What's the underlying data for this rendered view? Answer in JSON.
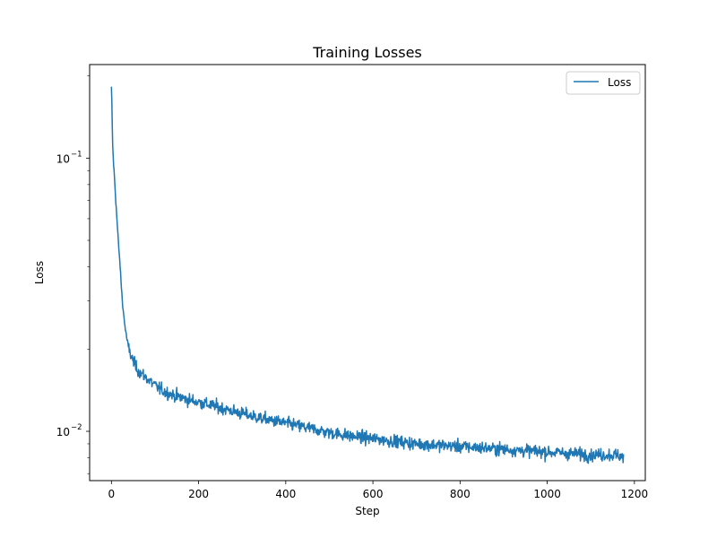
{
  "chart_data": {
    "type": "line",
    "title": "Training Losses",
    "xlabel": "Step",
    "ylabel": "Loss",
    "xlim": [
      -50,
      1225
    ],
    "ylim": [
      0.0066,
      0.22
    ],
    "yscale": "log",
    "x_ticks": [
      0,
      200,
      400,
      600,
      800,
      1000,
      1200
    ],
    "x_tick_labels": [
      "0",
      "200",
      "400",
      "600",
      "800",
      "1000",
      "1200"
    ],
    "y_major_ticks": [
      0.01,
      0.1
    ],
    "y_major_tick_labels": [
      "10",
      "10"
    ],
    "y_major_tick_exponents": [
      "−2",
      "−1"
    ],
    "y_minor_ticks": [
      0.007,
      0.008,
      0.009,
      0.02,
      0.03,
      0.04,
      0.05,
      0.06,
      0.07,
      0.08,
      0.09,
      0.2
    ],
    "grid": false,
    "legend_position": "top-right",
    "series": [
      {
        "name": "Loss",
        "color": "#1f77b4",
        "noise": 0.045,
        "x": [
          0,
          1,
          2,
          3,
          5,
          8,
          10,
          15,
          20,
          25,
          30,
          35,
          40,
          45,
          50,
          60,
          70,
          80,
          90,
          100,
          120,
          140,
          160,
          180,
          200,
          250,
          300,
          350,
          400,
          450,
          500,
          550,
          600,
          650,
          700,
          750,
          800,
          850,
          900,
          950,
          1000,
          1050,
          1100,
          1150,
          1175
        ],
        "y": [
          0.18,
          0.16,
          0.13,
          0.11,
          0.095,
          0.08,
          0.07,
          0.052,
          0.04,
          0.03,
          0.025,
          0.022,
          0.02,
          0.019,
          0.018,
          0.0168,
          0.0162,
          0.0157,
          0.0152,
          0.0147,
          0.014,
          0.0136,
          0.0133,
          0.013,
          0.0128,
          0.0122,
          0.0116,
          0.0111,
          0.0107,
          0.0103,
          0.0099,
          0.0096,
          0.0094,
          0.0092,
          0.009,
          0.0089,
          0.0088,
          0.0087,
          0.0086,
          0.0085,
          0.0084,
          0.0083,
          0.0082,
          0.0082,
          0.0081
        ]
      }
    ]
  }
}
